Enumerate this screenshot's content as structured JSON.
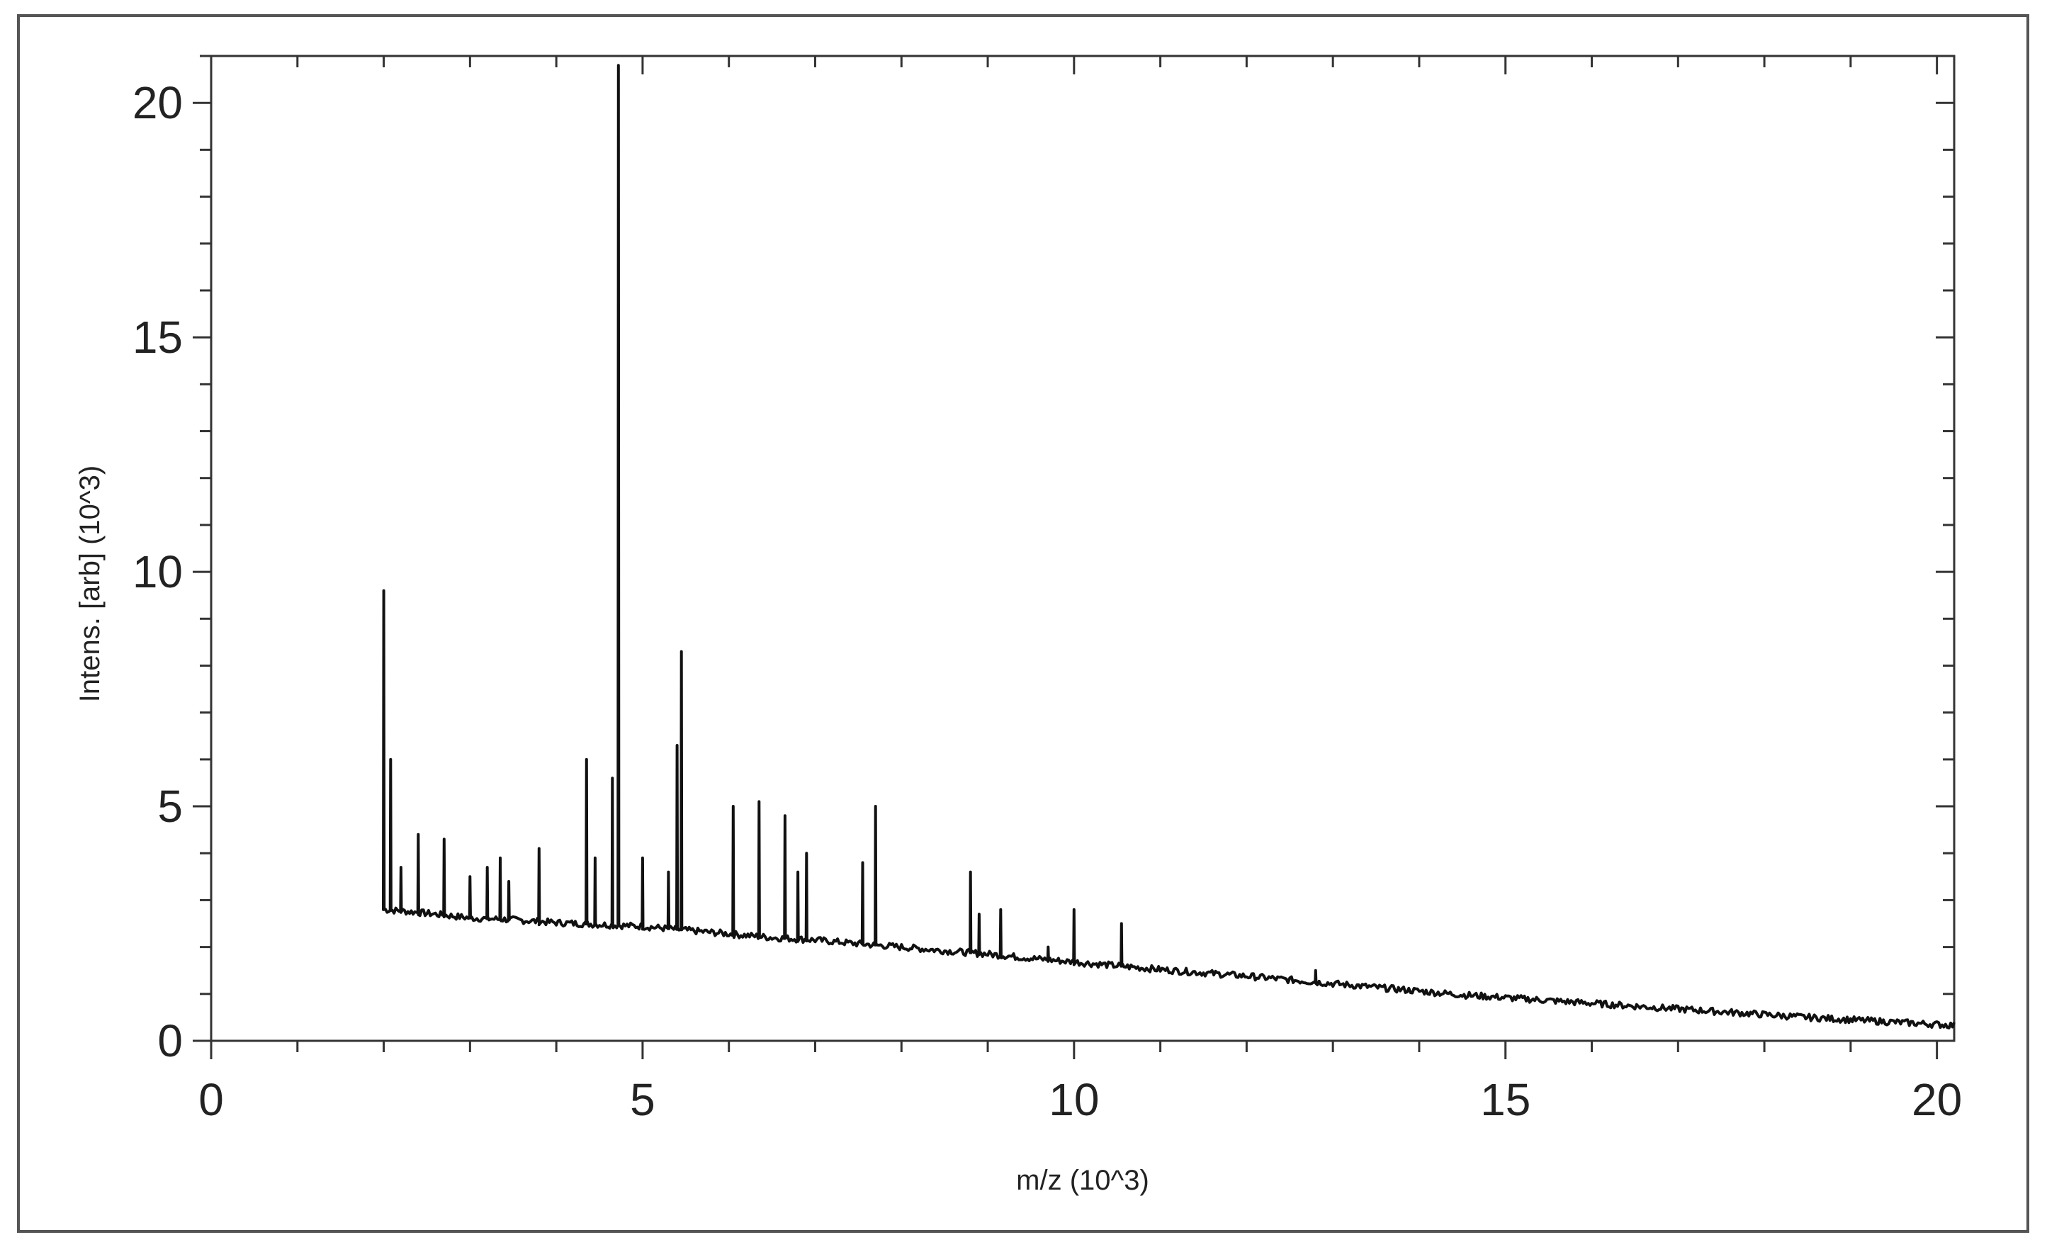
{
  "chart_data": {
    "type": "line",
    "title": "",
    "xlabel": "m/z (10^3)",
    "ylabel": "Intens. [arb] (10^3)",
    "xlim": [
      0,
      20.2
    ],
    "ylim": [
      0,
      21
    ],
    "xticks": [
      0,
      5,
      10,
      15,
      20
    ],
    "yticks": [
      0,
      5,
      10,
      15,
      20
    ],
    "grid": false,
    "legend": "none",
    "line_color": "#111111",
    "baseline": [
      [
        2.0,
        2.8
      ],
      [
        2.5,
        2.72
      ],
      [
        3.0,
        2.62
      ],
      [
        3.5,
        2.58
      ],
      [
        4.0,
        2.52
      ],
      [
        4.5,
        2.48
      ],
      [
        5.0,
        2.44
      ],
      [
        5.5,
        2.36
      ],
      [
        6.0,
        2.28
      ],
      [
        6.5,
        2.2
      ],
      [
        7.0,
        2.15
      ],
      [
        7.5,
        2.07
      ],
      [
        8.0,
        2.0
      ],
      [
        8.5,
        1.92
      ],
      [
        9.0,
        1.85
      ],
      [
        9.5,
        1.76
      ],
      [
        10.0,
        1.68
      ],
      [
        10.5,
        1.6
      ],
      [
        11.0,
        1.52
      ],
      [
        11.5,
        1.45
      ],
      [
        12.0,
        1.38
      ],
      [
        12.5,
        1.3
      ],
      [
        13.0,
        1.22
      ],
      [
        13.5,
        1.14
      ],
      [
        14.0,
        1.06
      ],
      [
        14.5,
        0.98
      ],
      [
        15.0,
        0.92
      ],
      [
        15.5,
        0.86
      ],
      [
        16.0,
        0.8
      ],
      [
        16.5,
        0.74
      ],
      [
        17.0,
        0.68
      ],
      [
        17.5,
        0.62
      ],
      [
        18.0,
        0.56
      ],
      [
        18.5,
        0.5
      ],
      [
        19.0,
        0.45
      ],
      [
        19.5,
        0.4
      ],
      [
        20.0,
        0.35
      ],
      [
        20.2,
        0.33
      ]
    ],
    "peaks": [
      [
        2.0,
        9.6
      ],
      [
        2.08,
        6.0
      ],
      [
        2.2,
        3.7
      ],
      [
        2.4,
        4.4
      ],
      [
        2.7,
        4.3
      ],
      [
        3.0,
        3.5
      ],
      [
        3.2,
        3.7
      ],
      [
        3.35,
        3.9
      ],
      [
        3.45,
        3.4
      ],
      [
        3.8,
        4.1
      ],
      [
        4.35,
        6.0
      ],
      [
        4.45,
        3.9
      ],
      [
        4.65,
        5.6
      ],
      [
        4.72,
        20.8
      ],
      [
        5.0,
        3.9
      ],
      [
        5.3,
        3.6
      ],
      [
        5.4,
        6.3
      ],
      [
        5.45,
        8.3
      ],
      [
        6.05,
        5.0
      ],
      [
        6.35,
        5.1
      ],
      [
        6.65,
        4.8
      ],
      [
        6.8,
        3.6
      ],
      [
        6.9,
        4.0
      ],
      [
        7.55,
        3.8
      ],
      [
        7.7,
        5.0
      ],
      [
        8.8,
        3.6
      ],
      [
        8.9,
        2.7
      ],
      [
        9.15,
        2.8
      ],
      [
        9.7,
        2.0
      ],
      [
        10.0,
        2.8
      ],
      [
        10.55,
        2.5
      ],
      [
        12.8,
        1.5
      ]
    ]
  }
}
